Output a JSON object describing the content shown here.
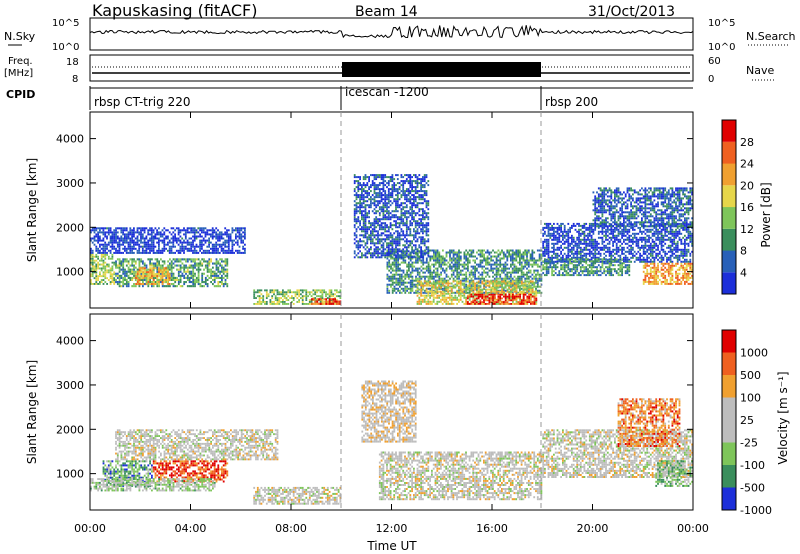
{
  "header": {
    "station": "Kapuskasing (fitACF)",
    "beam": "Beam 14",
    "date": "31/Oct/2013"
  },
  "top_panels": {
    "nsky_label": "N.Sky",
    "nsky_ticks": [
      "10^5",
      "10^0"
    ],
    "nsearch_label": "N.Search",
    "nsearch_ticks": [
      "10^5",
      "10^0"
    ],
    "freq_label": "Freq.",
    "freq_unit": "[MHz]",
    "freq_ticks": [
      "18",
      "8"
    ],
    "nave_label": "Nave",
    "nave_ticks": [
      "60",
      "0"
    ],
    "cpid_label": "CPID",
    "cpid_segments": [
      {
        "label": "rbsp CT-trig 220",
        "start_hour": 0
      },
      {
        "label": "icescan -1200",
        "start_hour": 10
      },
      {
        "label": "rbsp 200",
        "start_hour": 18
      }
    ]
  },
  "axes": {
    "xlabel": "Time UT",
    "x_ticks": [
      "00:00",
      "04:00",
      "08:00",
      "12:00",
      "16:00",
      "20:00",
      "00:00"
    ],
    "ylabel": "Slant Range [km]",
    "y_ticks": [
      "1000",
      "2000",
      "3000",
      "4000"
    ]
  },
  "power_colorbar": {
    "label": "Power [dB]",
    "ticks": [
      "4",
      "8",
      "12",
      "16",
      "20",
      "24",
      "28"
    ]
  },
  "velocity_colorbar": {
    "label": "Velocity [m s⁻¹]",
    "ticks": [
      "1000",
      "500",
      "100",
      "25",
      "-25",
      "-100",
      "-500",
      "-1000"
    ]
  },
  "chart_data": [
    {
      "type": "heatmap",
      "name": "power",
      "x_range_hours": [
        0,
        24
      ],
      "ylim_km": [
        180,
        4600
      ],
      "colorbar_range_db": [
        0,
        32
      ],
      "colors": [
        "#1c2fd9",
        "#2860b8",
        "#3a8e5c",
        "#7ec55a",
        "#e6d64a",
        "#f0a030",
        "#ef6020",
        "#e00000"
      ],
      "regions": [
        {
          "t0": 0.0,
          "t1": 1.0,
          "r0": 700,
          "r1": 1400,
          "level": 0.45
        },
        {
          "t0": 1.0,
          "t1": 5.5,
          "r0": 650,
          "r1": 1300,
          "level": 0.35
        },
        {
          "t0": 1.8,
          "t1": 3.2,
          "r0": 700,
          "r1": 1100,
          "level": 0.65
        },
        {
          "t0": 0.0,
          "t1": 6.2,
          "r0": 1400,
          "r1": 2000,
          "level": 0.08
        },
        {
          "t0": 6.5,
          "t1": 10.0,
          "r0": 250,
          "r1": 600,
          "level": 0.45
        },
        {
          "t0": 8.8,
          "t1": 10.0,
          "r0": 250,
          "r1": 400,
          "level": 0.85
        },
        {
          "t0": 11.8,
          "t1": 18.0,
          "r0": 500,
          "r1": 1500,
          "level": 0.3
        },
        {
          "t0": 13.0,
          "t1": 17.8,
          "r0": 250,
          "r1": 800,
          "level": 0.55
        },
        {
          "t0": 15.0,
          "t1": 17.8,
          "r0": 250,
          "r1": 500,
          "level": 0.9
        },
        {
          "t0": 18.0,
          "t1": 24.0,
          "r0": 1200,
          "r1": 2100,
          "level": 0.12
        },
        {
          "t0": 18.0,
          "t1": 21.5,
          "r0": 900,
          "r1": 1300,
          "level": 0.3
        },
        {
          "t0": 22.0,
          "t1": 24.0,
          "r0": 700,
          "r1": 1200,
          "level": 0.7
        },
        {
          "t0": 10.5,
          "t1": 13.5,
          "r0": 1300,
          "r1": 3200,
          "level": 0.15
        },
        {
          "t0": 20.0,
          "t1": 24.0,
          "r0": 2000,
          "r1": 2900,
          "level": 0.18
        }
      ]
    },
    {
      "type": "heatmap",
      "name": "velocity",
      "x_range_hours": [
        0,
        24
      ],
      "ylim_km": [
        180,
        4600
      ],
      "colors": [
        "#1c2fd9",
        "#3a8e5c",
        "#7ec55a",
        "#bdbdbd",
        "#bdbdbd",
        "#f0a030",
        "#ef6020",
        "#e00000"
      ],
      "regions": [
        {
          "t0": 0.5,
          "t1": 2.5,
          "r0": 700,
          "r1": 1300,
          "level": 0.25
        },
        {
          "t0": 2.5,
          "t1": 5.5,
          "r0": 800,
          "r1": 1300,
          "level": 0.85
        },
        {
          "t0": 0.0,
          "t1": 5.0,
          "r0": 600,
          "r1": 900,
          "level": 0.4
        },
        {
          "t0": 1.0,
          "t1": 7.5,
          "r0": 1300,
          "r1": 2000,
          "level": 0.5
        },
        {
          "t0": 6.5,
          "t1": 10.0,
          "r0": 300,
          "r1": 700,
          "level": 0.5
        },
        {
          "t0": 11.5,
          "t1": 18.0,
          "r0": 400,
          "r1": 1500,
          "level": 0.5
        },
        {
          "t0": 18.0,
          "t1": 24.0,
          "r0": 900,
          "r1": 2000,
          "level": 0.5
        },
        {
          "t0": 21.0,
          "t1": 23.5,
          "r0": 1600,
          "r1": 2700,
          "level": 0.75
        },
        {
          "t0": 22.5,
          "t1": 24.0,
          "r0": 700,
          "r1": 1300,
          "level": 0.3
        },
        {
          "t0": 10.8,
          "t1": 13.0,
          "r0": 1700,
          "r1": 3100,
          "level": 0.55
        }
      ]
    }
  ]
}
